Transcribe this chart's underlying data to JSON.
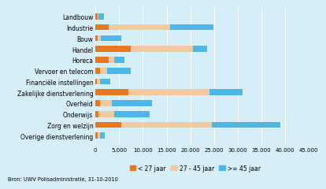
{
  "categories": [
    "Landbouw",
    "Industrie",
    "Bouw",
    "Handel",
    "Horeca",
    "Vervoer en telecom",
    "Financiële instellingen",
    "Zakelijke dienstverlening",
    "Overheid",
    "Onderwijs",
    "Zorg en welzijn",
    "Overige dienstverlening"
  ],
  "lt27": [
    400,
    2800,
    400,
    7500,
    2800,
    1000,
    300,
    7000,
    900,
    700,
    5500,
    400
  ],
  "mid": [
    200,
    13000,
    800,
    13000,
    1200,
    1500,
    600,
    17000,
    2500,
    3200,
    19000,
    600
  ],
  "gt45": [
    1200,
    9000,
    4200,
    3000,
    2200,
    5000,
    2200,
    7000,
    8500,
    7500,
    14500,
    900
  ],
  "color_lt27": "#e87722",
  "color_mid": "#f5c8a0",
  "color_gt45": "#4db8e8",
  "bg_color": "#d6eef8",
  "xlim": [
    0,
    45000
  ],
  "xticks": [
    0,
    5000,
    10000,
    15000,
    20000,
    25000,
    30000,
    35000,
    40000,
    45000
  ],
  "xtick_labels": [
    "0",
    "5.000",
    "10.000",
    "15.000",
    "20.000",
    "25.000",
    "30.000",
    "35.000",
    "40.000",
    "45.000"
  ],
  "legend_labels": [
    "< 27 jaar",
    "27 - 45 jaar",
    ">= 45 jaar"
  ],
  "source_text": "Bron: UWV Polisadministratie, 31-10-2010",
  "bar_height": 0.55,
  "label_fontsize": 5.5,
  "tick_fontsize": 5.0,
  "legend_fontsize": 5.5,
  "source_fontsize": 4.8
}
